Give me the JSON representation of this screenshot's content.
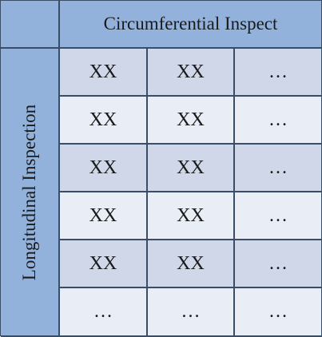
{
  "table": {
    "column_header": "Circumferential Inspect",
    "row_header": "Longitudinal Inspection",
    "rows": [
      [
        "XX",
        "XX",
        "…"
      ],
      [
        "XX",
        "XX",
        "…"
      ],
      [
        "XX",
        "XX",
        "…"
      ],
      [
        "XX",
        "XX",
        "…"
      ],
      [
        "XX",
        "XX",
        "…"
      ],
      [
        "…",
        "…",
        "…"
      ]
    ]
  },
  "colors": {
    "header": "#93b2db",
    "cell_dark": "#cfd7e8",
    "cell_light": "#e9edf5",
    "border": "#3a4d66"
  }
}
